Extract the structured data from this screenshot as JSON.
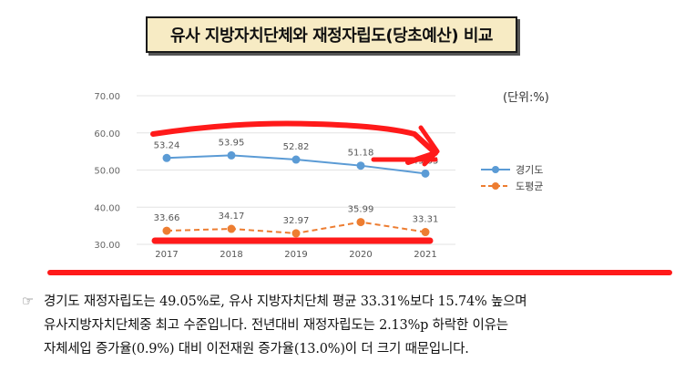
{
  "title": "유사 지방자치단체와 재정자립도(당초예산) 비교",
  "unit_label": "(단위:%)",
  "chart_data": {
    "type": "line",
    "x": [
      "2017",
      "2018",
      "2019",
      "2020",
      "2021"
    ],
    "series": [
      {
        "name": "경기도",
        "values": [
          53.24,
          53.95,
          52.82,
          51.18,
          49.05
        ],
        "color": "#5b9bd5",
        "style": "solid"
      },
      {
        "name": "도평균",
        "values": [
          33.66,
          34.17,
          32.97,
          35.99,
          33.31
        ],
        "color": "#ed7d31",
        "style": "dashed"
      }
    ],
    "y_ticks": [
      "30.00",
      "40.00",
      "50.00",
      "60.00",
      "70.00"
    ],
    "ylim": [
      30,
      70
    ],
    "legend_position": "right",
    "annotations": {
      "marker_color": "#ff1a1a"
    }
  },
  "description": {
    "bullet": "☞",
    "lines": [
      "경기도 재정자립도는 49.05%로, 유사 지방자치단체 평균 33.31%보다 15.74% 높으며",
      "유사지방자치단체중 최고 수준입니다. 전년대비 재정자립도는 2.13%p 하락한 이유는",
      "자체세입 증가율(0.9%) 대비 이전재원 증가율(13.0%)이 더 크기 때문입니다."
    ]
  }
}
